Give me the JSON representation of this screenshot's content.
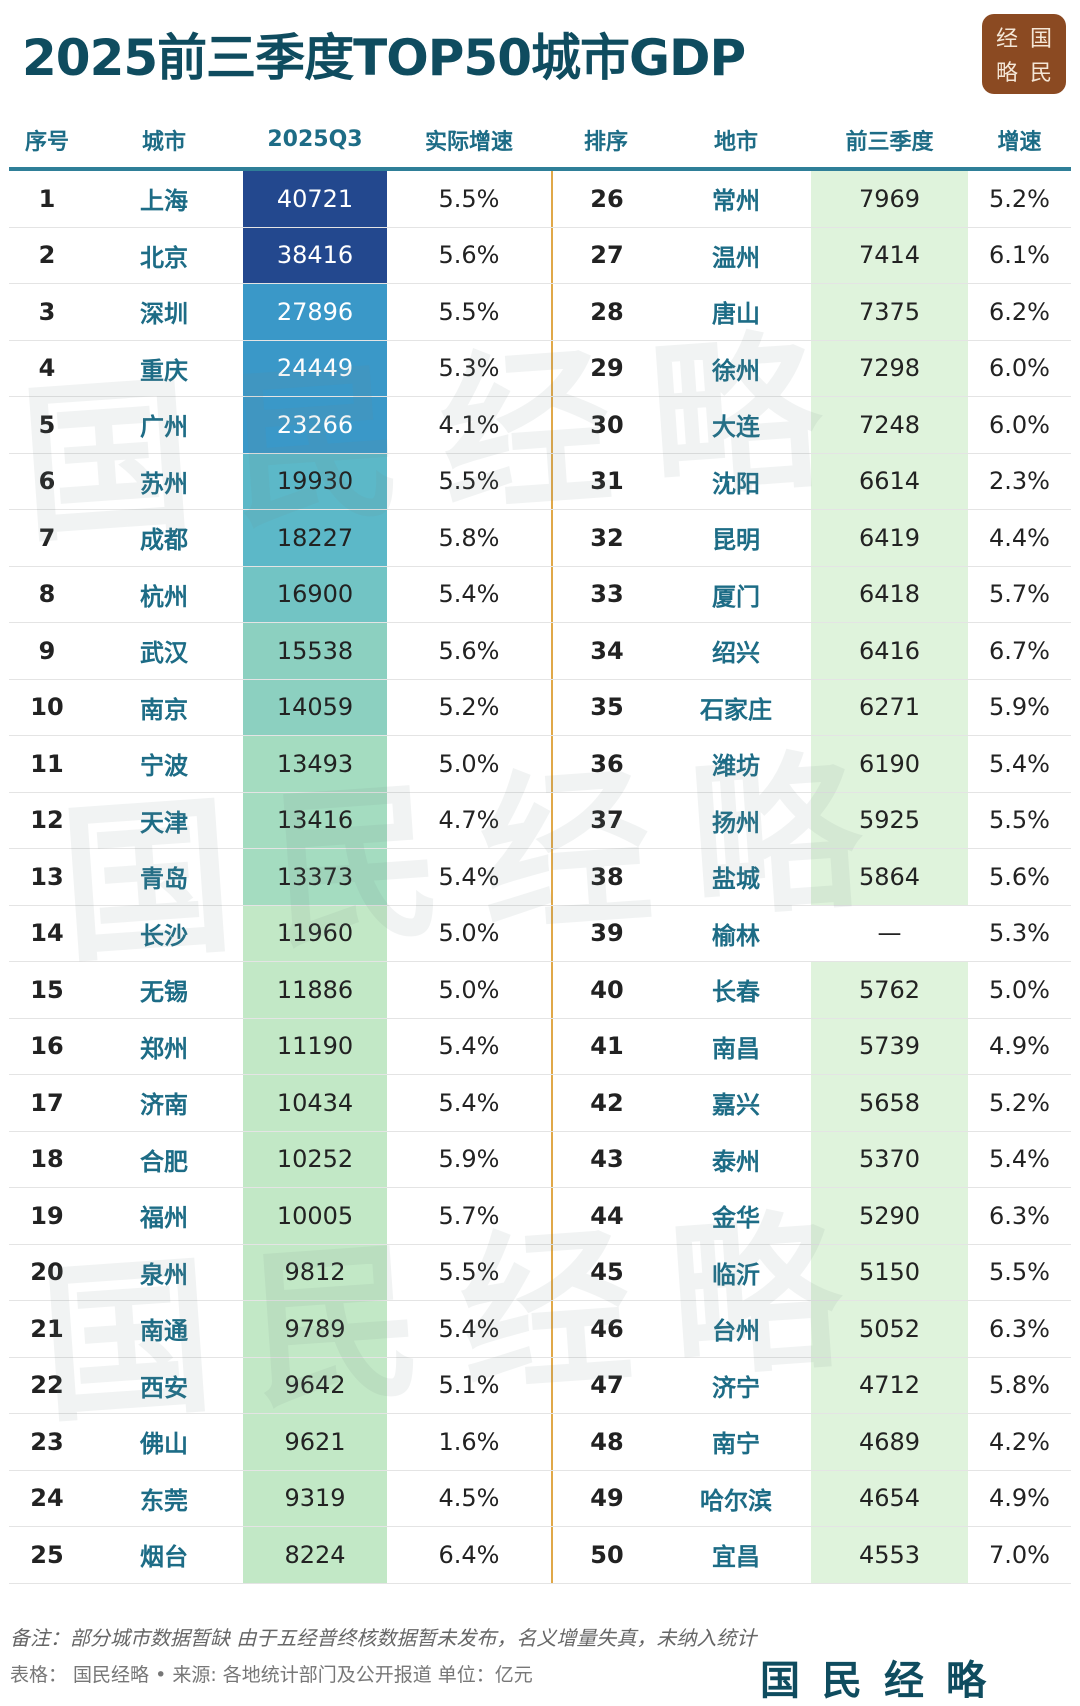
{
  "title": "2025前三季度TOP50城市GDP",
  "seal_text": [
    "经",
    "国",
    "略",
    "民"
  ],
  "watermark": "国民经略",
  "headers": [
    "序号",
    "城市",
    "2025Q3",
    "实际增速",
    "排序",
    "地市",
    "前三季度",
    "增速"
  ],
  "colors": {
    "header_text": "#1d6c86",
    "title": "#0f4c5f",
    "divider": "#e0a848",
    "seal": "#8b4a22",
    "right_gdp_fill": "#dff3dc"
  },
  "rows_left": [
    [
      "1",
      "上海",
      "40721",
      "5.5%"
    ],
    [
      "2",
      "北京",
      "38416",
      "5.6%"
    ],
    [
      "3",
      "深圳",
      "27896",
      "5.5%"
    ],
    [
      "4",
      "重庆",
      "24449",
      "5.3%"
    ],
    [
      "5",
      "广州",
      "23266",
      "4.1%"
    ],
    [
      "6",
      "苏州",
      "19930",
      "5.5%"
    ],
    [
      "7",
      "成都",
      "18227",
      "5.8%"
    ],
    [
      "8",
      "杭州",
      "16900",
      "5.4%"
    ],
    [
      "9",
      "武汉",
      "15538",
      "5.6%"
    ],
    [
      "10",
      "南京",
      "14059",
      "5.2%"
    ],
    [
      "11",
      "宁波",
      "13493",
      "5.0%"
    ],
    [
      "12",
      "天津",
      "13416",
      "4.7%"
    ],
    [
      "13",
      "青岛",
      "13373",
      "5.4%"
    ],
    [
      "14",
      "长沙",
      "11960",
      "5.0%"
    ],
    [
      "15",
      "无锡",
      "11886",
      "5.0%"
    ],
    [
      "16",
      "郑州",
      "11190",
      "5.4%"
    ],
    [
      "17",
      "济南",
      "10434",
      "5.4%"
    ],
    [
      "18",
      "合肥",
      "10252",
      "5.9%"
    ],
    [
      "19",
      "福州",
      "10005",
      "5.7%"
    ],
    [
      "20",
      "泉州",
      "9812",
      "5.5%"
    ],
    [
      "21",
      "南通",
      "9789",
      "5.4%"
    ],
    [
      "22",
      "西安",
      "9642",
      "5.1%"
    ],
    [
      "23",
      "佛山",
      "9621",
      "1.6%"
    ],
    [
      "24",
      "东莞",
      "9319",
      "4.5%"
    ],
    [
      "25",
      "烟台",
      "8224",
      "6.4%"
    ]
  ],
  "rows_right": [
    [
      "26",
      "常州",
      "7969",
      "5.2%"
    ],
    [
      "27",
      "温州",
      "7414",
      "6.1%"
    ],
    [
      "28",
      "唐山",
      "7375",
      "6.2%"
    ],
    [
      "29",
      "徐州",
      "7298",
      "6.0%"
    ],
    [
      "30",
      "大连",
      "7248",
      "6.0%"
    ],
    [
      "31",
      "沈阳",
      "6614",
      "2.3%"
    ],
    [
      "32",
      "昆明",
      "6419",
      "4.4%"
    ],
    [
      "33",
      "厦门",
      "6418",
      "5.7%"
    ],
    [
      "34",
      "绍兴",
      "6416",
      "6.7%"
    ],
    [
      "35",
      "石家庄",
      "6271",
      "5.9%"
    ],
    [
      "36",
      "潍坊",
      "6190",
      "5.4%"
    ],
    [
      "37",
      "扬州",
      "5925",
      "5.5%"
    ],
    [
      "38",
      "盐城",
      "5864",
      "5.6%"
    ],
    [
      "39",
      "榆林",
      "—",
      "5.3%"
    ],
    [
      "40",
      "长春",
      "5762",
      "5.0%"
    ],
    [
      "41",
      "南昌",
      "5739",
      "4.9%"
    ],
    [
      "42",
      "嘉兴",
      "5658",
      "5.2%"
    ],
    [
      "43",
      "泰州",
      "5370",
      "5.4%"
    ],
    [
      "44",
      "金华",
      "5290",
      "6.3%"
    ],
    [
      "45",
      "临沂",
      "5150",
      "5.5%"
    ],
    [
      "46",
      "台州",
      "5052",
      "6.3%"
    ],
    [
      "47",
      "济宁",
      "4712",
      "5.8%"
    ],
    [
      "48",
      "南宁",
      "4689",
      "4.2%"
    ],
    [
      "49",
      "哈尔滨",
      "4654",
      "4.9%"
    ],
    [
      "50",
      "宜昌",
      "4553",
      "7.0%"
    ]
  ],
  "note": "备注：部分城市数据暂缺 由于五经普终核数据暂未发布，名义增量失真，未纳入统计",
  "source": "表格： 国民经略 • 来源: 各地统计部门及公开报道 单位：亿元",
  "brand": "国民经略"
}
